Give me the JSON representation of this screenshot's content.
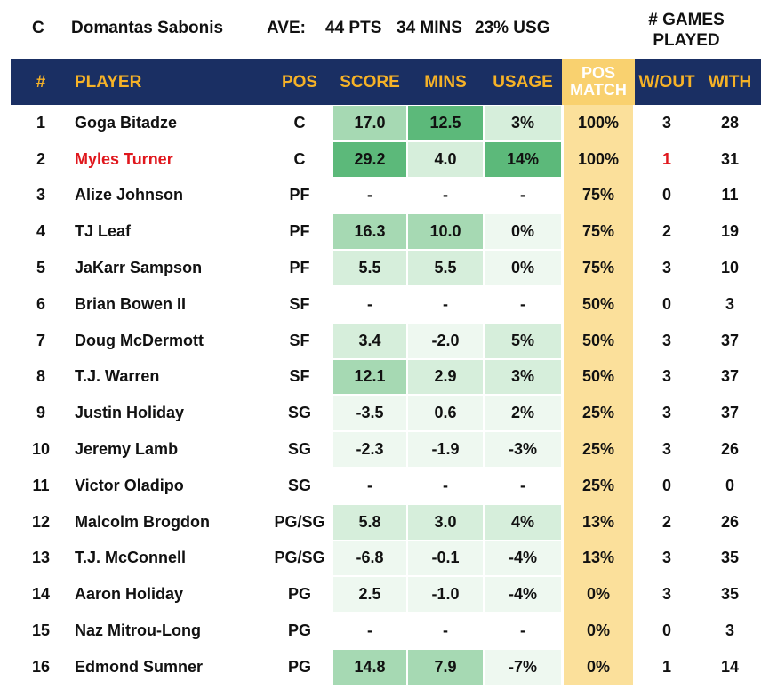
{
  "summary": {
    "position": "C",
    "player": "Domantas Sabonis",
    "ave_label": "AVE:",
    "pts": "44 PTS",
    "mins": "34 MINS",
    "usg": "23% USG",
    "games_line1": "# GAMES",
    "games_line2": "PLAYED"
  },
  "headers": {
    "num": "#",
    "player": "PLAYER",
    "pos": "POS",
    "score": "SCORE",
    "mins": "MINS",
    "usage": "USAGE",
    "pos_match_1": "POS",
    "pos_match_2": "MATCH",
    "wout": "W/OUT",
    "with": "WITH"
  },
  "colors": {
    "header_bg": "#1a2f63",
    "header_text": "#f6b227",
    "pos_match_bg": "#fbe09b",
    "highlight_red": "#e0171d",
    "green_dark": "#5cb97a",
    "green_mid": "#a6d9b3",
    "green_light": "#d6eedb",
    "green_faint": "#eef8f0"
  },
  "rows": [
    {
      "num": "1",
      "player": "Goga Bitadze",
      "pos": "C",
      "score": "17.0",
      "mins": "12.5",
      "usage": "3%",
      "match": "100%",
      "wout": "3",
      "with": "28",
      "score_shade": "mid",
      "mins_shade": "dark",
      "usage_shade": "light",
      "highlight": false
    },
    {
      "num": "2",
      "player": "Myles Turner",
      "pos": "C",
      "score": "29.2",
      "mins": "4.0",
      "usage": "14%",
      "match": "100%",
      "wout": "1",
      "with": "31",
      "score_shade": "dark",
      "mins_shade": "light",
      "usage_shade": "dark",
      "highlight": true
    },
    {
      "num": "3",
      "player": "Alize Johnson",
      "pos": "PF",
      "score": "-",
      "mins": "-",
      "usage": "-",
      "match": "75%",
      "wout": "0",
      "with": "11",
      "score_shade": "none",
      "mins_shade": "none",
      "usage_shade": "none",
      "highlight": false
    },
    {
      "num": "4",
      "player": "TJ Leaf",
      "pos": "PF",
      "score": "16.3",
      "mins": "10.0",
      "usage": "0%",
      "match": "75%",
      "wout": "2",
      "with": "19",
      "score_shade": "mid",
      "mins_shade": "mid",
      "usage_shade": "faint",
      "highlight": false
    },
    {
      "num": "5",
      "player": "JaKarr Sampson",
      "pos": "PF",
      "score": "5.5",
      "mins": "5.5",
      "usage": "0%",
      "match": "75%",
      "wout": "3",
      "with": "10",
      "score_shade": "light",
      "mins_shade": "light",
      "usage_shade": "faint",
      "highlight": false
    },
    {
      "num": "6",
      "player": "Brian Bowen II",
      "pos": "SF",
      "score": "-",
      "mins": "-",
      "usage": "-",
      "match": "50%",
      "wout": "0",
      "with": "3",
      "score_shade": "none",
      "mins_shade": "none",
      "usage_shade": "none",
      "highlight": false
    },
    {
      "num": "7",
      "player": "Doug McDermott",
      "pos": "SF",
      "score": "3.4",
      "mins": "-2.0",
      "usage": "5%",
      "match": "50%",
      "wout": "3",
      "with": "37",
      "score_shade": "light",
      "mins_shade": "faint",
      "usage_shade": "light",
      "highlight": false
    },
    {
      "num": "8",
      "player": "T.J. Warren",
      "pos": "SF",
      "score": "12.1",
      "mins": "2.9",
      "usage": "3%",
      "match": "50%",
      "wout": "3",
      "with": "37",
      "score_shade": "mid",
      "mins_shade": "light",
      "usage_shade": "light",
      "highlight": false
    },
    {
      "num": "9",
      "player": "Justin Holiday",
      "pos": "SG",
      "score": "-3.5",
      "mins": "0.6",
      "usage": "2%",
      "match": "25%",
      "wout": "3",
      "with": "37",
      "score_shade": "faint",
      "mins_shade": "faint",
      "usage_shade": "faint",
      "highlight": false
    },
    {
      "num": "10",
      "player": "Jeremy Lamb",
      "pos": "SG",
      "score": "-2.3",
      "mins": "-1.9",
      "usage": "-3%",
      "match": "25%",
      "wout": "3",
      "with": "26",
      "score_shade": "faint",
      "mins_shade": "faint",
      "usage_shade": "faint",
      "highlight": false
    },
    {
      "num": "11",
      "player": "Victor Oladipo",
      "pos": "SG",
      "score": "-",
      "mins": "-",
      "usage": "-",
      "match": "25%",
      "wout": "0",
      "with": "0",
      "score_shade": "none",
      "mins_shade": "none",
      "usage_shade": "none",
      "highlight": false
    },
    {
      "num": "12",
      "player": "Malcolm Brogdon",
      "pos": "PG/SG",
      "score": "5.8",
      "mins": "3.0",
      "usage": "4%",
      "match": "13%",
      "wout": "2",
      "with": "26",
      "score_shade": "light",
      "mins_shade": "light",
      "usage_shade": "light",
      "highlight": false
    },
    {
      "num": "13",
      "player": "T.J. McConnell",
      "pos": "PG/SG",
      "score": "-6.8",
      "mins": "-0.1",
      "usage": "-4%",
      "match": "13%",
      "wout": "3",
      "with": "35",
      "score_shade": "faint",
      "mins_shade": "faint",
      "usage_shade": "faint",
      "highlight": false
    },
    {
      "num": "14",
      "player": "Aaron Holiday",
      "pos": "PG",
      "score": "2.5",
      "mins": "-1.0",
      "usage": "-4%",
      "match": "0%",
      "wout": "3",
      "with": "35",
      "score_shade": "faint",
      "mins_shade": "faint",
      "usage_shade": "faint",
      "highlight": false
    },
    {
      "num": "15",
      "player": "Naz Mitrou-Long",
      "pos": "PG",
      "score": "-",
      "mins": "-",
      "usage": "-",
      "match": "0%",
      "wout": "0",
      "with": "3",
      "score_shade": "none",
      "mins_shade": "none",
      "usage_shade": "none",
      "highlight": false
    },
    {
      "num": "16",
      "player": "Edmond Sumner",
      "pos": "PG",
      "score": "14.8",
      "mins": "7.9",
      "usage": "-7%",
      "match": "0%",
      "wout": "1",
      "with": "14",
      "score_shade": "mid",
      "mins_shade": "mid",
      "usage_shade": "faint",
      "highlight": false
    }
  ]
}
